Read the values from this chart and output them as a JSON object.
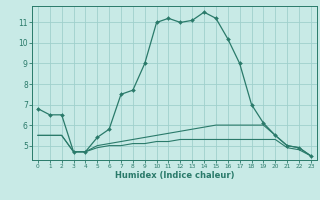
{
  "xlabel": "Humidex (Indice chaleur)",
  "bg_color": "#c8eae6",
  "grid_color": "#a0d0cc",
  "line_color": "#2a7a6a",
  "x_ticks": [
    0,
    1,
    2,
    3,
    4,
    5,
    6,
    7,
    8,
    9,
    10,
    11,
    12,
    13,
    14,
    15,
    16,
    17,
    18,
    19,
    20,
    21,
    22,
    23
  ],
  "y_ticks": [
    5,
    6,
    7,
    8,
    9,
    10,
    11
  ],
  "ylim": [
    4.3,
    11.8
  ],
  "xlim": [
    -0.5,
    23.5
  ],
  "series": [
    {
      "x": [
        0,
        1,
        2,
        3,
        4,
        5,
        6,
        7,
        8,
        9,
        10,
        11,
        12,
        13,
        14,
        15,
        16,
        17,
        18,
        19,
        20,
        21,
        22,
        23
      ],
      "y": [
        6.8,
        6.5,
        6.5,
        4.7,
        4.7,
        5.4,
        5.8,
        7.5,
        7.7,
        9.0,
        11.0,
        11.2,
        11.0,
        11.1,
        11.5,
        11.2,
        10.2,
        9.0,
        7.0,
        6.1,
        5.5,
        5.0,
        4.9,
        4.5
      ]
    },
    {
      "x": [
        0,
        1,
        2,
        3,
        4,
        5,
        6,
        7,
        8,
        9,
        10,
        11,
        12,
        13,
        14,
        15,
        16,
        17,
        18,
        19,
        20,
        21,
        22,
        23
      ],
      "y": [
        5.5,
        5.5,
        5.5,
        4.7,
        4.7,
        5.0,
        5.1,
        5.2,
        5.3,
        5.4,
        5.5,
        5.6,
        5.7,
        5.8,
        5.9,
        6.0,
        6.0,
        6.0,
        6.0,
        6.0,
        5.5,
        5.0,
        4.9,
        4.5
      ]
    },
    {
      "x": [
        0,
        1,
        2,
        3,
        4,
        5,
        6,
        7,
        8,
        9,
        10,
        11,
        12,
        13,
        14,
        15,
        16,
        17,
        18,
        19,
        20,
        21,
        22,
        23
      ],
      "y": [
        5.5,
        5.5,
        5.5,
        4.7,
        4.7,
        4.9,
        5.0,
        5.0,
        5.1,
        5.1,
        5.2,
        5.2,
        5.3,
        5.3,
        5.3,
        5.3,
        5.3,
        5.3,
        5.3,
        5.3,
        5.3,
        4.9,
        4.8,
        4.5
      ]
    }
  ]
}
